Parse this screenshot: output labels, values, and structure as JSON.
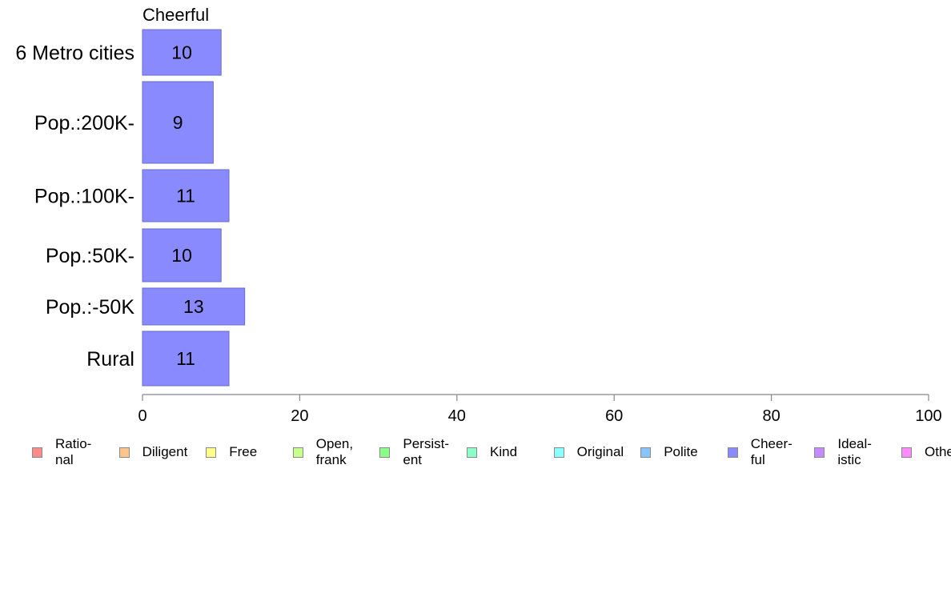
{
  "chart_data": {
    "type": "bar",
    "orientation": "horizontal",
    "title": "Cheerful",
    "categories": [
      "6 Metro cities",
      "Pop.:200K-",
      "Pop.:100K-",
      "Pop.:50K-",
      "Pop.:-50K",
      "Rural"
    ],
    "series": [
      {
        "name": "Cheerful",
        "values": [
          10,
          9,
          11,
          10,
          13,
          11
        ],
        "color": "#8a8aff"
      }
    ],
    "data_labels": [
      "10",
      "9",
      "11",
      "10",
      "13",
      "11"
    ],
    "xlim": [
      0,
      100
    ],
    "xticks": [
      0,
      20,
      40,
      60,
      80,
      100
    ],
    "tick_labels": [
      "0",
      "20",
      "40",
      "60",
      "80",
      "100"
    ],
    "grid": false,
    "legend_position": "bottom",
    "legend": [
      {
        "label": "Ratio-\nnal",
        "color": "#ff8a8a"
      },
      {
        "label": "Diligent",
        "color": "#ffc48a"
      },
      {
        "label": "Free",
        "color": "#ffff8a"
      },
      {
        "label": "Open,\nfrank",
        "color": "#c8ff8a"
      },
      {
        "label": "Persist-\nent",
        "color": "#8aff8a"
      },
      {
        "label": "Kind",
        "color": "#8affc8"
      },
      {
        "label": "Original",
        "color": "#8affff"
      },
      {
        "label": "Polite",
        "color": "#8ac4ff"
      },
      {
        "label": "Cheer-\nful",
        "color": "#8a8aff"
      },
      {
        "label": "Ideal-\nistic",
        "color": "#c48aff"
      },
      {
        "label": "Others",
        "color": "#ff8aff"
      }
    ]
  }
}
